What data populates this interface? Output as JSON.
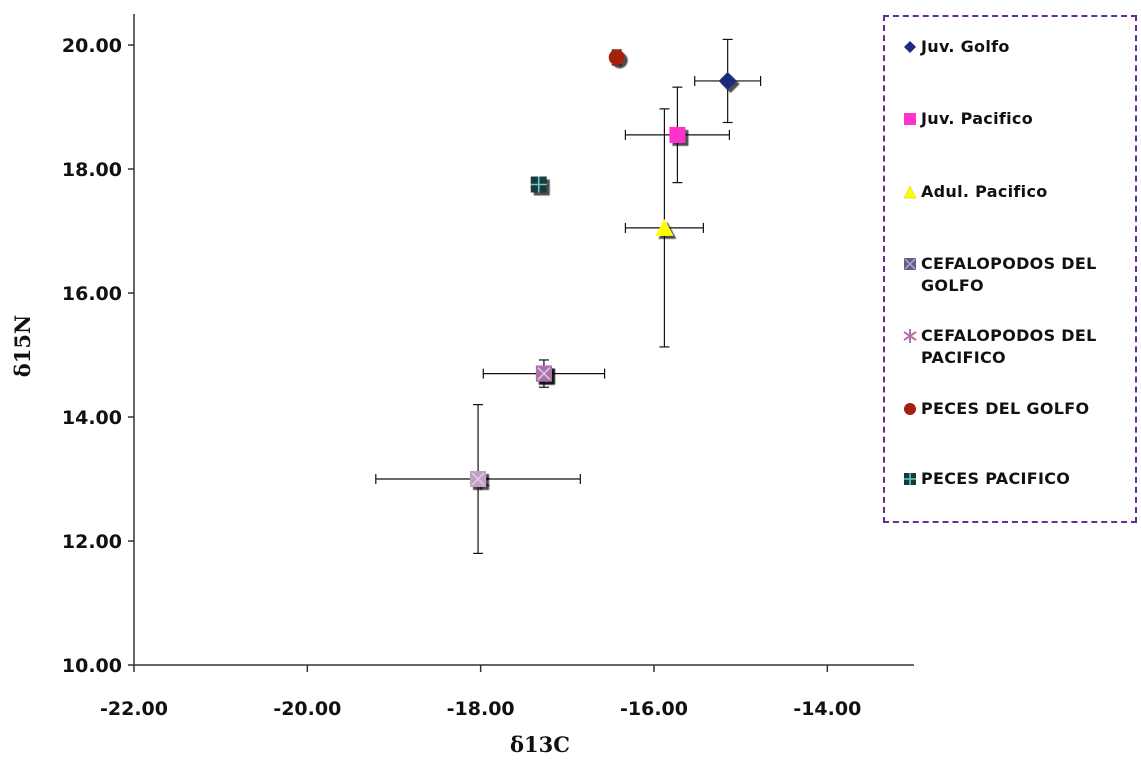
{
  "chart_data": {
    "type": "scatter",
    "title": "",
    "xlabel": "δ13C",
    "ylabel": "δ15N",
    "xlim": [
      -22,
      -13
    ],
    "ylim": [
      10,
      20.5
    ],
    "x_ticks": [
      "-22.00",
      "-20.00",
      "-18.00",
      "-16.00",
      "-14.00"
    ],
    "y_ticks": [
      "10.00",
      "12.00",
      "14.00",
      "16.00",
      "18.00",
      "20.00"
    ],
    "grid": false,
    "legend_position": "right",
    "series": [
      {
        "name": "Juv. Golfo",
        "marker": "diamond",
        "color": "#1f2a7a",
        "x": -15.15,
        "y": 19.42,
        "x_err": 0.38,
        "y_err": 0.67
      },
      {
        "name": "Juv. Pacifico",
        "marker": "square",
        "color": "#ff33cc",
        "x": -15.73,
        "y": 18.55,
        "x_err": 0.6,
        "y_err": 0.77
      },
      {
        "name": "Adul. Pacifico",
        "marker": "triangle",
        "color": "#ffff00",
        "x": -15.88,
        "y": 17.05,
        "x_err": 0.45,
        "y_err": 1.92
      },
      {
        "name": "CEFALOPODOS  DEL GOLFO",
        "marker": "square-x",
        "color": "#6c5a86",
        "x": -17.27,
        "y": 14.7,
        "x_err": 0.0,
        "y_err": 0.22
      },
      {
        "name": "CEFALOPODOS  DEL PACIFICO",
        "marker": "asterisk",
        "color": "#b56fb0",
        "x": -18.03,
        "y": 13.0,
        "x_err": 1.18,
        "y_err": 1.2
      },
      {
        "name": "PECES DEL GOLFO",
        "marker": "circle",
        "color": "#a32010",
        "x": -16.43,
        "y": 19.8,
        "x_err": 0.0,
        "y_err": 0.12
      },
      {
        "name": "PECES PACIFICO",
        "marker": "square-plus",
        "color": "#1a3a3a",
        "x": -17.33,
        "y": 17.75,
        "x_err": 0.0,
        "y_err": 0.0
      },
      {
        "name": "",
        "marker": "square-x",
        "color": "#b06fae",
        "x": -17.27,
        "y": 14.7,
        "x_err": 0.7,
        "y_err": 0.0
      },
      {
        "name": "",
        "marker": "square-x",
        "color": "#c4a0c4",
        "x": -18.03,
        "y": 13.0,
        "x_err": 0.0,
        "y_err": 0.0
      }
    ]
  }
}
